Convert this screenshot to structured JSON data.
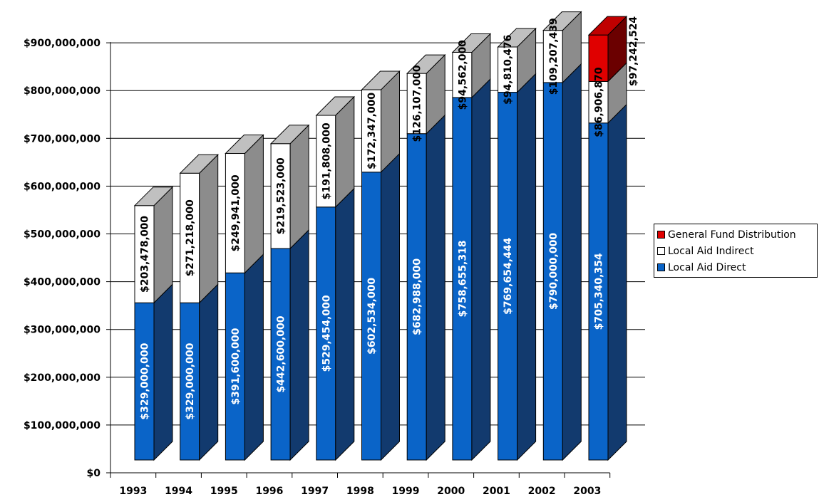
{
  "chart_data": {
    "type": "bar",
    "stacked": true,
    "three_d": true,
    "categories": [
      "1993",
      "1994",
      "1995",
      "1996",
      "1997",
      "1998",
      "1999",
      "2000",
      "2001",
      "2002",
      "2003"
    ],
    "series": [
      {
        "name": "Local Aid Direct",
        "color": "#0a64c8",
        "values": [
          329000000,
          329000000,
          391600000,
          442600000,
          529454000,
          602534000,
          682988000,
          758655318,
          769654444,
          790000000,
          705340354
        ],
        "labels": [
          "$329,000,000",
          "$329,000,000",
          "$391,600,000",
          "$442,600,000",
          "$529,454,000",
          "$602,534,000",
          "$682,988,000",
          "$758,655,318",
          "$769,654,444",
          "$790,000,000",
          "$705,340,354"
        ]
      },
      {
        "name": "Local Aid Indirect",
        "color": "#ffffff",
        "values": [
          203478000,
          271218000,
          249941000,
          219523000,
          191808000,
          172347000,
          126107000,
          94562000,
          94810476,
          109207439,
          86906870
        ],
        "labels": [
          "$203,478,000",
          "$271,218,000",
          "$249,941,000",
          "$219,523,000",
          "$191,808,000",
          "$172,347,000",
          "$126,107,000",
          "$94,562,000",
          "$94,810,476",
          "$109,207,439",
          "$86,906,870"
        ]
      },
      {
        "name": "General Fund Distribution",
        "color": "#e00000",
        "values": [
          0,
          0,
          0,
          0,
          0,
          0,
          0,
          0,
          0,
          0,
          97242524
        ],
        "labels": [
          "",
          "",
          "",
          "",
          "",
          "",
          "",
          "",
          "",
          "",
          "$97,242,524"
        ]
      }
    ],
    "ylim": [
      0,
      900000000
    ],
    "yticks": [
      "$0",
      "$100,000,000",
      "$200,000,000",
      "$300,000,000",
      "$400,000,000",
      "$500,000,000",
      "$600,000,000",
      "$700,000,000",
      "$800,000,000",
      "$900,000,000"
    ],
    "grid": true,
    "legend_position": "right",
    "title": "",
    "xlabel": "",
    "ylabel": ""
  }
}
